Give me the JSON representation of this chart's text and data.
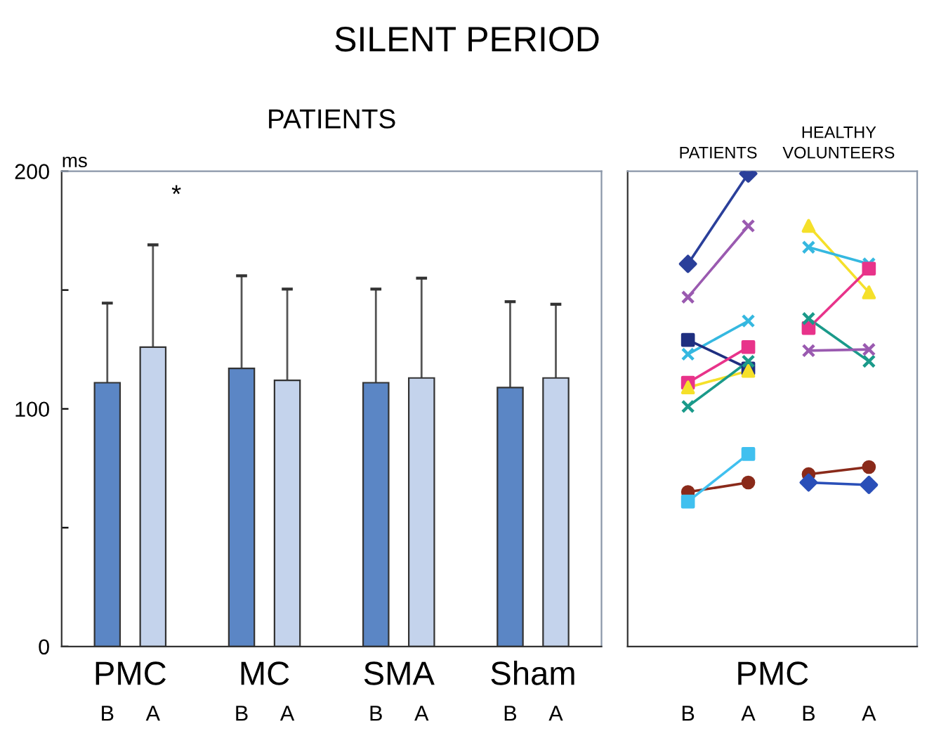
{
  "chart_data": [
    {
      "type": "bar",
      "title": "SILENT PERIOD",
      "subtitle": "PATIENTS",
      "ylabel": "ms",
      "categories": [
        "B",
        "A",
        "B",
        "A",
        "B",
        "A",
        "B",
        "A"
      ],
      "values": [
        111,
        126,
        117,
        112,
        111,
        113,
        109,
        113
      ],
      "colors": [
        "#5b86c5",
        "#c4d3ec",
        "#5b86c5",
        "#c4d3ec",
        "#5b86c5",
        "#c4d3ec",
        "#5b86c5",
        "#c4d3ec"
      ],
      "errors": [
        [
          111,
          144.5
        ],
        [
          126,
          169
        ],
        [
          117,
          156
        ],
        [
          112,
          150.4
        ],
        [
          111,
          150.4
        ],
        [
          113,
          155
        ],
        [
          109,
          145.1
        ],
        [
          113,
          144
        ]
      ],
      "ylim": [
        0,
        200
      ],
      "yticks": [
        0,
        {
          "value": 50,
          "label": null
        },
        100,
        {
          "value": 150,
          "label": null
        },
        200
      ],
      "annotations": [
        "PMC",
        "MC",
        "SMA",
        "Sham",
        "*"
      ],
      "grid": false,
      "legend": false
    },
    {
      "type": "line",
      "xlabel": "PMC",
      "categories": [
        "B",
        "A",
        "B",
        "A"
      ],
      "ylim": [
        0,
        200
      ],
      "tick_labels": "x",
      "annotations": [
        "PATIENTS",
        "HEALTHY\nVOLUNTEERS"
      ],
      "grid": false,
      "legend": false,
      "series": [
        {
          "color": "#2a3f9a",
          "marker": "diamond",
          "values": [
            161,
            199,
            null,
            null
          ]
        },
        {
          "color": "#9a5ab0",
          "marker": "cross",
          "values": [
            147,
            177,
            null,
            null
          ]
        },
        {
          "color": "#35b8e0",
          "marker": "cross",
          "values": [
            123,
            137,
            null,
            null
          ]
        },
        {
          "color": "#1f2f80",
          "marker": "square",
          "values": [
            129,
            117,
            null,
            null
          ]
        },
        {
          "color": "#e8338a",
          "marker": "square",
          "values": [
            111,
            126,
            null,
            null
          ]
        },
        {
          "color": "#f5e02a",
          "marker": "triangle",
          "values": [
            109,
            116,
            null,
            null
          ]
        },
        {
          "color": "#1a9a8a",
          "marker": "cross",
          "values": [
            101,
            120,
            null,
            null
          ]
        },
        {
          "color": "#8a2a1a",
          "marker": "circle",
          "values": [
            65,
            69,
            null,
            null
          ]
        },
        {
          "color": "#40c0ef",
          "marker": "square",
          "values": [
            61,
            81,
            null,
            null
          ]
        },
        {
          "color": "#f5e02a",
          "marker": "triangle",
          "values": [
            null,
            null,
            177,
            149
          ]
        },
        {
          "color": "#35b8e0",
          "marker": "cross",
          "values": [
            null,
            null,
            168,
            161
          ]
        },
        {
          "color": "#e8338a",
          "marker": "square",
          "values": [
            null,
            null,
            134,
            159
          ]
        },
        {
          "color": "#1a9a8a",
          "marker": "cross",
          "values": [
            null,
            null,
            138,
            120
          ]
        },
        {
          "color": "#9a5ab0",
          "marker": "cross",
          "values": [
            null,
            null,
            124.5,
            125
          ]
        },
        {
          "color": "#8a2a1a",
          "marker": "circle",
          "values": [
            null,
            null,
            72.5,
            75.5
          ]
        },
        {
          "color": "#2a4fb8",
          "marker": "diamond",
          "values": [
            null,
            null,
            69,
            68
          ]
        }
      ]
    }
  ]
}
